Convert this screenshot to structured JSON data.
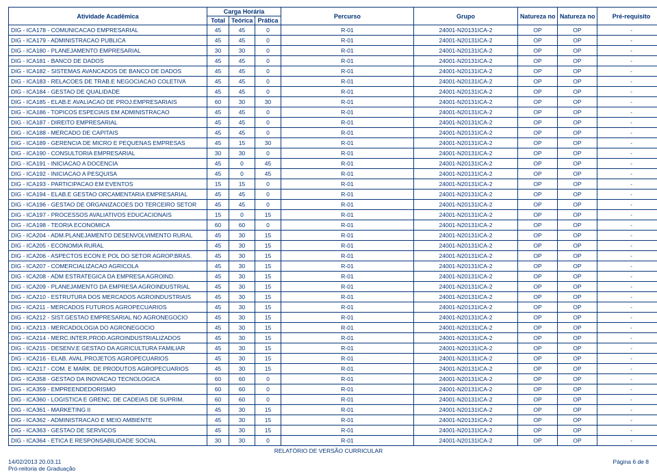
{
  "header": {
    "activity": "Atividade Acadêmica",
    "carga": "Carga Horária",
    "total": "Total",
    "teorica": "Teórica",
    "pratica": "Prática",
    "percurso": "Percurso",
    "grupo": "Grupo",
    "nat_grupo": "Natureza no Grupo",
    "nat_percurso": "Natureza no Percurso",
    "prereq": "Pré-requisito"
  },
  "rows": [
    {
      "a": "DIG - ICA178 - COMUNICACAO EMPRESARIAL",
      "t": 45,
      "te": 45,
      "p": 0,
      "pc": "R-01",
      "g": "24001-N20131ICA-2",
      "ng": "OP",
      "np": "OP",
      "pr": "-"
    },
    {
      "a": "DIG - ICA179 - ADMINISTRACAO PUBLICA",
      "t": 45,
      "te": 45,
      "p": 0,
      "pc": "R-01",
      "g": "24001-N20131ICA-2",
      "ng": "OP",
      "np": "OP",
      "pr": "-"
    },
    {
      "a": "DIG - ICA180 - PLANEJAMENTO EMPRESARIAL",
      "t": 30,
      "te": 30,
      "p": 0,
      "pc": "R-01",
      "g": "24001-N20131ICA-2",
      "ng": "OP",
      "np": "OP",
      "pr": "-"
    },
    {
      "a": "DIG - ICA181 - BANCO DE DADOS",
      "t": 45,
      "te": 45,
      "p": 0,
      "pc": "R-01",
      "g": "24001-N20131ICA-2",
      "ng": "OP",
      "np": "OP",
      "pr": "-"
    },
    {
      "a": "DIG - ICA182 - SISTEMAS AVANCADOS DE BANCO DE DADOS",
      "t": 45,
      "te": 45,
      "p": 0,
      "pc": "R-01",
      "g": "24001-N20131ICA-2",
      "ng": "OP",
      "np": "OP",
      "pr": "-"
    },
    {
      "a": "DIG - ICA183 - RELACOES DE TRAB.E NEGOCIACAO COLETIVA",
      "t": 45,
      "te": 45,
      "p": 0,
      "pc": "R-01",
      "g": "24001-N20131ICA-2",
      "ng": "OP",
      "np": "OP",
      "pr": "-"
    },
    {
      "a": "DIG - ICA184 - GESTAO DE QUALIDADE",
      "t": 45,
      "te": 45,
      "p": 0,
      "pc": "R-01",
      "g": "24001-N20131ICA-2",
      "ng": "OP",
      "np": "OP",
      "pr": "-"
    },
    {
      "a": "DIG - ICA185 - ELAB.E AVALIACAO DE PROJ.EMPRESARIAIS",
      "t": 60,
      "te": 30,
      "p": 30,
      "pc": "R-01",
      "g": "24001-N20131ICA-2",
      "ng": "OP",
      "np": "OP",
      "pr": "-"
    },
    {
      "a": "DIG - ICA186 - TOPICOS ESPECIAIS EM ADMINISTRACAO",
      "t": 45,
      "te": 45,
      "p": 0,
      "pc": "R-01",
      "g": "24001-N20131ICA-2",
      "ng": "OP",
      "np": "OP",
      "pr": "-"
    },
    {
      "a": "DIG - ICA187 - DIREITO EMPRESARIAL",
      "t": 45,
      "te": 45,
      "p": 0,
      "pc": "R-01",
      "g": "24001-N20131ICA-2",
      "ng": "OP",
      "np": "OP",
      "pr": "-"
    },
    {
      "a": "DIG - ICA188 - MERCADO DE CAPITAIS",
      "t": 45,
      "te": 45,
      "p": 0,
      "pc": "R-01",
      "g": "24001-N20131ICA-2",
      "ng": "OP",
      "np": "OP",
      "pr": "-"
    },
    {
      "a": "DIG - ICA189 - GERENCIA DE MICRO E PEQUENAS EMPRESAS",
      "t": 45,
      "te": 15,
      "p": 30,
      "pc": "R-01",
      "g": "24001-N20131ICA-2",
      "ng": "OP",
      "np": "OP",
      "pr": "-"
    },
    {
      "a": "DIG - ICA190 - CONSULTORIA EMPRESARIAL",
      "t": 30,
      "te": 30,
      "p": 0,
      "pc": "R-01",
      "g": "24001-N20131ICA-2",
      "ng": "OP",
      "np": "OP",
      "pr": "-"
    },
    {
      "a": "DIG - ICA191 - INICIACAO A DOCENCIA",
      "t": 45,
      "te": 0,
      "p": 45,
      "pc": "R-01",
      "g": "24001-N20131ICA-2",
      "ng": "OP",
      "np": "OP",
      "pr": "-"
    },
    {
      "a": "DIG - ICA192 - INICIACAO A PESQUISA",
      "t": 45,
      "te": 0,
      "p": 45,
      "pc": "R-01",
      "g": "24001-N20131ICA-2",
      "ng": "OP",
      "np": "OP",
      "pr": "-"
    },
    {
      "a": "DIG - ICA193 - PARTICIPACAO EM EVENTOS",
      "t": 15,
      "te": 15,
      "p": 0,
      "pc": "R-01",
      "g": "24001-N20131ICA-2",
      "ng": "OP",
      "np": "OP",
      "pr": "-"
    },
    {
      "a": "DIG - ICA194 - ELAB.E GESTAO ORCAMENTARIA EMPRESARIAL",
      "t": 45,
      "te": 45,
      "p": 0,
      "pc": "R-01",
      "g": "24001-N20131ICA-2",
      "ng": "OP",
      "np": "OP",
      "pr": "-"
    },
    {
      "a": "DIG - ICA196 - GESTAO DE ORGANIZACOES DO TERCEIRO SETOR",
      "t": 45,
      "te": 45,
      "p": 0,
      "pc": "R-01",
      "g": "24001-N20131ICA-2",
      "ng": "OP",
      "np": "OP",
      "pr": "-"
    },
    {
      "a": "DIG - ICA197 - PROCESSOS AVALIATIVOS EDUCACIONAIS",
      "t": 15,
      "te": 0,
      "p": 15,
      "pc": "R-01",
      "g": "24001-N20131ICA-2",
      "ng": "OP",
      "np": "OP",
      "pr": "-"
    },
    {
      "a": "DIG - ICA198 - TEORIA ECONOMICA",
      "t": 60,
      "te": 60,
      "p": 0,
      "pc": "R-01",
      "g": "24001-N20131ICA-2",
      "ng": "OP",
      "np": "OP",
      "pr": "-"
    },
    {
      "a": "DIG - ICA204 - ADM.PLANEJAMENTO DESENVOLVIMENTO RURAL",
      "t": 45,
      "te": 30,
      "p": 15,
      "pc": "R-01",
      "g": "24001-N20131ICA-2",
      "ng": "OP",
      "np": "OP",
      "pr": "-"
    },
    {
      "a": "DIG - ICA205 - ECONOMIA RURAL",
      "t": 45,
      "te": 30,
      "p": 15,
      "pc": "R-01",
      "g": "24001-N20131ICA-2",
      "ng": "OP",
      "np": "OP",
      "pr": "-"
    },
    {
      "a": "DIG - ICA206 - ASPECTOS ECON E POL DO SETOR AGROP.BRAS.",
      "t": 45,
      "te": 30,
      "p": 15,
      "pc": "R-01",
      "g": "24001-N20131ICA-2",
      "ng": "OP",
      "np": "OP",
      "pr": "-"
    },
    {
      "a": "DIG - ICA207 - COMERCIALIZACAO AGRICOLA",
      "t": 45,
      "te": 30,
      "p": 15,
      "pc": "R-01",
      "g": "24001-N20131ICA-2",
      "ng": "OP",
      "np": "OP",
      "pr": "-"
    },
    {
      "a": "DIG - ICA208 - ADM ESTRATEGICA DA EMPRESA AGROIND.",
      "t": 45,
      "te": 30,
      "p": 15,
      "pc": "R-01",
      "g": "24001-N20131ICA-2",
      "ng": "OP",
      "np": "OP",
      "pr": "-"
    },
    {
      "a": "DIG - ICA209 - PLANEJAMENTO DA EMPRESA AGROINDUSTRIAL",
      "t": 45,
      "te": 30,
      "p": 15,
      "pc": "R-01",
      "g": "24001-N20131ICA-2",
      "ng": "OP",
      "np": "OP",
      "pr": "-"
    },
    {
      "a": "DIG - ICA210 - ESTRUTURA DOS MERCADOS AGROINDUSTRIAIS",
      "t": 45,
      "te": 30,
      "p": 15,
      "pc": "R-01",
      "g": "24001-N20131ICA-2",
      "ng": "OP",
      "np": "OP",
      "pr": "-"
    },
    {
      "a": "DIG - ICA211 - MERCADOS FUTUROS AGROPECUARIOS",
      "t": 45,
      "te": 30,
      "p": 15,
      "pc": "R-01",
      "g": "24001-N20131ICA-2",
      "ng": "OP",
      "np": "OP",
      "pr": "-"
    },
    {
      "a": "DIG - ICA212 - SIST.GESTAO EMPRESARIAL NO AGRONEGOCIO",
      "t": 45,
      "te": 30,
      "p": 15,
      "pc": "R-01",
      "g": "24001-N20131ICA-2",
      "ng": "OP",
      "np": "OP",
      "pr": "-"
    },
    {
      "a": "DIG - ICA213 - MERCADOLOGIA DO AGRONEGOCIO",
      "t": 45,
      "te": 30,
      "p": 15,
      "pc": "R-01",
      "g": "24001-N20131ICA-2",
      "ng": "OP",
      "np": "OP",
      "pr": "-"
    },
    {
      "a": "DIG - ICA214 - MERC.INTER.PROD.AGROINDUSTRIALIZADOS",
      "t": 45,
      "te": 30,
      "p": 15,
      "pc": "R-01",
      "g": "24001-N20131ICA-2",
      "ng": "OP",
      "np": "OP",
      "pr": "-"
    },
    {
      "a": "DIG - ICA215 - DESENV.E GESTAO DA AGRICULTURA FAMILIAR",
      "t": 45,
      "te": 30,
      "p": 15,
      "pc": "R-01",
      "g": "24001-N20131ICA-2",
      "ng": "OP",
      "np": "OP",
      "pr": "-"
    },
    {
      "a": "DIG - ICA216 - ELAB. AVAL.PROJETOS AGROPECUARIOS",
      "t": 45,
      "te": 30,
      "p": 15,
      "pc": "R-01",
      "g": "24001-N20131ICA-2",
      "ng": "OP",
      "np": "OP",
      "pr": "-"
    },
    {
      "a": "DIG - ICA217 - COM. E MARK. DE PRODUTOS AGROPECUARIOS",
      "t": 45,
      "te": 30,
      "p": 15,
      "pc": "R-01",
      "g": "24001-N20131ICA-2",
      "ng": "OP",
      "np": "OP",
      "pr": "-"
    },
    {
      "a": "DIG - ICA358 - GESTAO DA INOVACAO TECNOLOGICA",
      "t": 60,
      "te": 60,
      "p": 0,
      "pc": "R-01",
      "g": "24001-N20131ICA-2",
      "ng": "OP",
      "np": "OP",
      "pr": "-"
    },
    {
      "a": "DIG - ICA359 - EMPREENDEDORISMO",
      "t": 60,
      "te": 60,
      "p": 0,
      "pc": "R-01",
      "g": "24001-N20131ICA-2",
      "ng": "OP",
      "np": "OP",
      "pr": "-"
    },
    {
      "a": "DIG - ICA360 - LOGISTICA E GRENC. DE CADEIAS DE SUPRIM.",
      "t": 60,
      "te": 60,
      "p": 0,
      "pc": "R-01",
      "g": "24001-N20131ICA-2",
      "ng": "OP",
      "np": "OP",
      "pr": "-"
    },
    {
      "a": "DIG - ICA361 - MARKETING II",
      "t": 45,
      "te": 30,
      "p": 15,
      "pc": "R-01",
      "g": "24001-N20131ICA-2",
      "ng": "OP",
      "np": "OP",
      "pr": "-"
    },
    {
      "a": "DIG - ICA362 - ADMINISTRACAO E MEIO AMBIENTE",
      "t": 45,
      "te": 30,
      "p": 15,
      "pc": "R-01",
      "g": "24001-N20131ICA-2",
      "ng": "OP",
      "np": "OP",
      "pr": "-"
    },
    {
      "a": "DIG - ICA363 - GESTAO DE SERVICOS",
      "t": 45,
      "te": 30,
      "p": 15,
      "pc": "R-01",
      "g": "24001-N20131ICA-2",
      "ng": "OP",
      "np": "OP",
      "pr": "-"
    },
    {
      "a": "DIG - ICA364 - ETICA E RESPONSABILIDADE SOCIAL",
      "t": 30,
      "te": 30,
      "p": 0,
      "pc": "R-01",
      "g": "24001-N20131ICA-2",
      "ng": "OP",
      "np": "OP",
      "pr": "-"
    }
  ],
  "footer": {
    "report_title": "RELATÓRIO DE VERSÃO CURRICULAR",
    "timestamp": "14/02/2013 20.03.11",
    "office": "Pró-reitoria de Graduação",
    "page": "Página 6 de 8"
  },
  "colors": {
    "text": "#003176",
    "border": "#003176",
    "background": "#ffffff"
  }
}
